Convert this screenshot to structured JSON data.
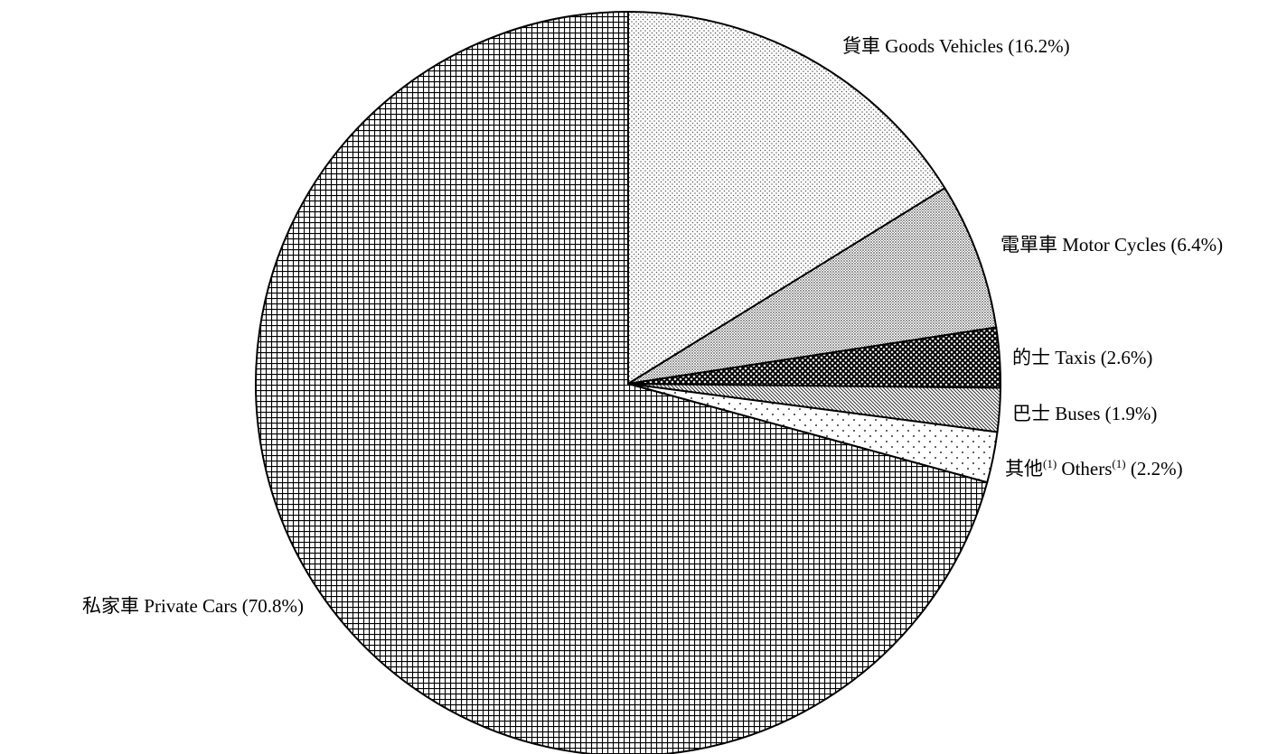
{
  "chart_data": {
    "type": "pie",
    "title": "",
    "start_angle_deg": 0,
    "direction": "clockwise",
    "legend": "none",
    "slices": [
      {
        "name_zh": "貨車",
        "name_en": "Goods Vehicles",
        "value": 16.2,
        "value_text": "(16.2%)",
        "pattern": "fine-dots"
      },
      {
        "name_zh": "電單車",
        "name_en": "Motor Cycles",
        "value": 6.4,
        "value_text": "(6.4%)",
        "pattern": "dense-dots"
      },
      {
        "name_zh": "的士",
        "name_en": "Taxis",
        "value": 2.6,
        "value_text": "(2.6%)",
        "pattern": "crosshatch-dark"
      },
      {
        "name_zh": "巴士",
        "name_en": "Buses",
        "value": 1.9,
        "value_text": "(1.9%)",
        "pattern": "diagonal-lines"
      },
      {
        "name_zh": "其他",
        "name_en": "Others",
        "footnote_marker": "(1)",
        "value": 2.2,
        "value_text": "(2.2%)",
        "pattern": "sparse-dots"
      },
      {
        "name_zh": "私家車",
        "name_en": "Private Cars",
        "value": 70.8,
        "value_text": "(70.8%)",
        "pattern": "grid"
      }
    ]
  }
}
